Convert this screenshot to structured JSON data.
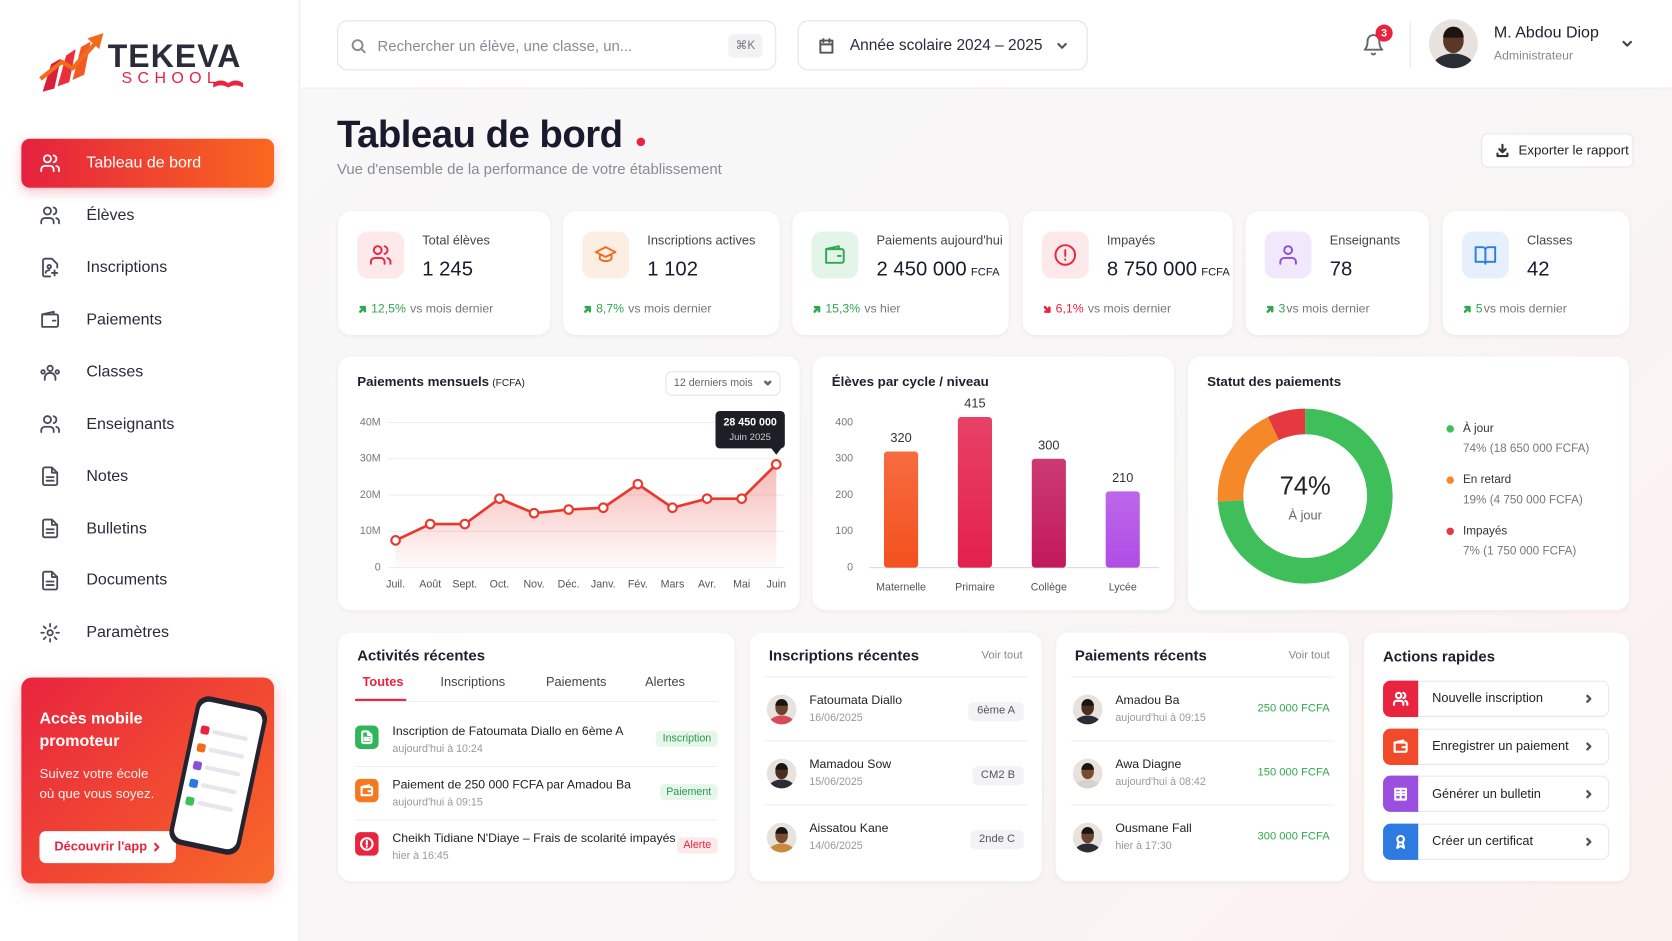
{
  "sidebar": {
    "logo": {
      "name": "TEKEVA",
      "tagline": "SCHOOL"
    },
    "nav": [
      "Tableau de bord",
      "Élèves",
      "Inscriptions",
      "Paiements",
      "Classes",
      "Enseignants",
      "Notes",
      "Bulletins",
      "Documents",
      "Paramètres"
    ],
    "promo": {
      "title": "Accès mobile promoteur",
      "text": "Suivez votre école où que vous soyez.",
      "button": "Découvrir l'app"
    }
  },
  "header": {
    "search_placeholder": "Rechercher un élève, une classe, un...",
    "shortcut": "⌘K",
    "school_year": "Année scolaire 2024 – 2025",
    "notifications": "3",
    "user": {
      "name": "M. Abdou Diop",
      "role": "Administrateur"
    }
  },
  "page": {
    "title": "Tableau de bord",
    "subtitle": "Vue d'ensemble de la performance de votre établissement",
    "export": "Exporter le rapport"
  },
  "kpis": [
    {
      "label": "Total élèves",
      "value": "1 245",
      "change": "12,5%",
      "period": "vs mois dernier",
      "trend": "up"
    },
    {
      "label": "Inscriptions actives",
      "value": "1 102",
      "change": "8,7%",
      "period": "vs mois dernier",
      "trend": "up"
    },
    {
      "label": "Paiements aujourd'hui",
      "value": "2 450 000",
      "unit": "FCFA",
      "change": "15,3%",
      "period": "vs hier",
      "trend": "up"
    },
    {
      "label": "Impayés",
      "value": "8 750 000",
      "unit": "FCFA",
      "change": "6,1%",
      "period": "vs mois dernier",
      "trend": "down"
    },
    {
      "label": "Enseignants",
      "value": "78",
      "change": "3",
      "period": "vs mois dernier",
      "trend": "up"
    },
    {
      "label": "Classes",
      "value": "42",
      "change": "5",
      "period": "vs mois dernier",
      "trend": "up"
    }
  ],
  "chart_data": [
    {
      "type": "line",
      "title": "Paiements mensuels",
      "unit": "(FCFA)",
      "range_selector": "12 derniers mois",
      "categories": [
        "Juil.",
        "Août",
        "Sept.",
        "Oct.",
        "Nov.",
        "Déc.",
        "Janv.",
        "Fév.",
        "Mars",
        "Avr.",
        "Mai",
        "Juin"
      ],
      "values": [
        7500000,
        12000000,
        12000000,
        19000000,
        15000000,
        16000000,
        16500000,
        23000000,
        16500000,
        19000000,
        19000000,
        28450000
      ],
      "value_labels": [
        null,
        null,
        null,
        null,
        null,
        null,
        null,
        null,
        null,
        null,
        null,
        "28 450 000"
      ],
      "tooltip_caption": "Juin 2025",
      "color": "#e8392f",
      "ylim": [
        0,
        40000000
      ],
      "yticks": [
        0,
        {
          "value": 10000000,
          "label": "10M"
        },
        {
          "value": 20000000,
          "label": "20M"
        },
        {
          "value": 30000000,
          "label": "30M"
        },
        {
          "value": 40000000,
          "label": "40M"
        }
      ],
      "grid": true
    },
    {
      "type": "bar",
      "title": "Élèves par cycle / niveau",
      "categories": [
        "Maternelle",
        "Primaire",
        "Collège",
        "Lycée"
      ],
      "values": [
        320,
        415,
        300,
        210
      ],
      "colors": [
        "#f4511e",
        "#e3204c",
        "#c2185b",
        "#b04de6"
      ],
      "ylim": [
        0,
        430
      ],
      "yticks": [
        0,
        100,
        200,
        300,
        400
      ],
      "grid": false
    },
    {
      "type": "pie",
      "title": "Statut des paiements",
      "categories": [
        "À jour",
        "En retard",
        "Impayés"
      ],
      "values": [
        74,
        19,
        7
      ],
      "value_labels": [
        "74% (18 650 000 FCFA)",
        "19% (4 750 000 FCFA)",
        "7% (1 750 000 FCFA)"
      ],
      "colors": [
        "#3fbf5a",
        "#f5892a",
        "#e53940"
      ],
      "center_label": "74%",
      "center_caption": "À jour",
      "legend": "right"
    }
  ],
  "activities": {
    "title": "Activités récentes",
    "tabs": [
      "Toutes",
      "Inscriptions",
      "Paiements",
      "Alertes"
    ],
    "items": [
      {
        "text": "Inscription de Fatoumata Diallo en 6ème A",
        "time": "aujourd'hui à 10:24",
        "tag": "Inscription"
      },
      {
        "text": "Paiement de 250 000 FCFA par Amadou Ba",
        "time": "aujourd'hui à 09:15",
        "tag": "Paiement"
      },
      {
        "text": "Cheikh Tidiane N'Diaye – Frais de scolarité impayés",
        "time": "hier à 16:45",
        "tag": "Alerte"
      }
    ]
  },
  "inscriptions": {
    "title": "Inscriptions récentes",
    "link": "Voir tout",
    "items": [
      {
        "name": "Fatoumata Diallo",
        "date": "16/06/2025",
        "class": "6ème A"
      },
      {
        "name": "Mamadou Sow",
        "date": "15/06/2025",
        "class": "CM2 B"
      },
      {
        "name": "Aissatou Kane",
        "date": "14/06/2025",
        "class": "2nde C"
      }
    ]
  },
  "payments": {
    "title": "Paiements récents",
    "link": "Voir tout",
    "items": [
      {
        "name": "Amadou Ba",
        "time": "aujourd'hui à 09:15",
        "amount": "250 000 FCFA"
      },
      {
        "name": "Awa Diagne",
        "time": "aujourd'hui à 08:42",
        "amount": "150 000 FCFA"
      },
      {
        "name": "Ousmane Fall",
        "time": "hier à 17:30",
        "amount": "300 000 FCFA"
      }
    ]
  },
  "actions": {
    "title": "Actions rapides",
    "items": [
      "Nouvelle inscription",
      "Enregistrer un paiement",
      "Générer un bulletin",
      "Créer un certificat"
    ]
  }
}
